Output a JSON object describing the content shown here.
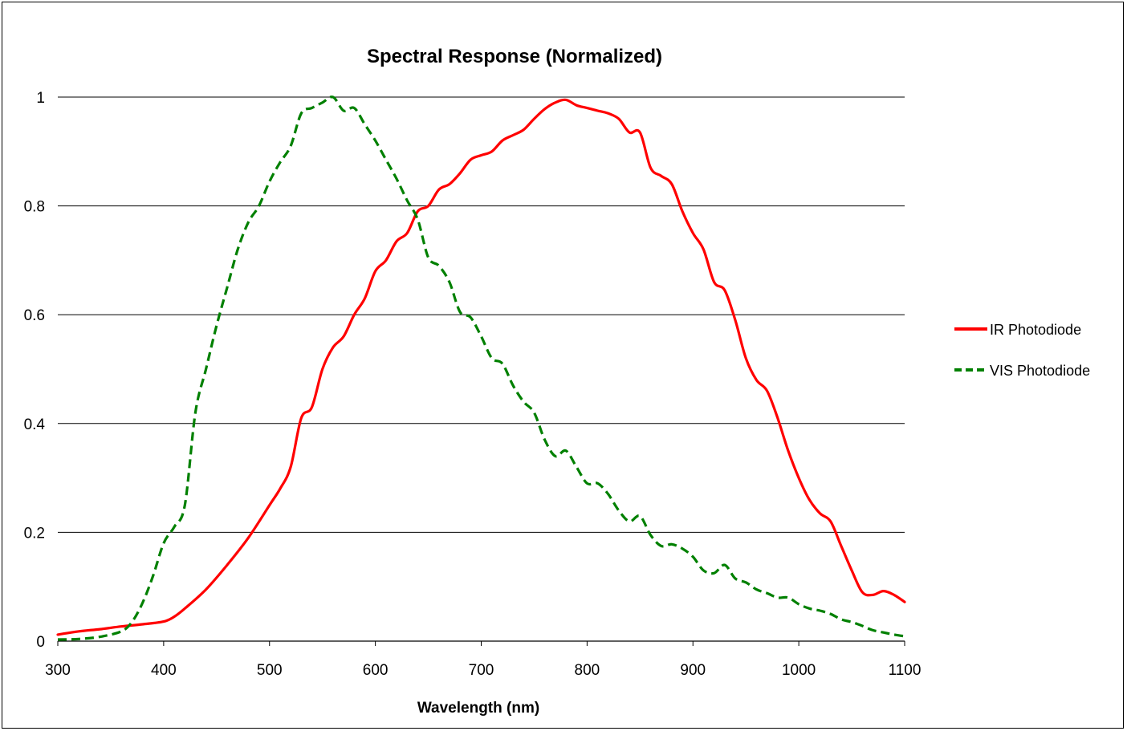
{
  "chart_data": {
    "type": "line",
    "title": "Spectral Response (Normalized)",
    "xlabel": "Wavelength (nm)",
    "ylabel": "",
    "xlim": [
      300,
      1100
    ],
    "ylim": [
      0,
      1
    ],
    "x_ticks": [
      "300",
      "400",
      "500",
      "600",
      "700",
      "800",
      "900",
      "1000",
      "1100"
    ],
    "y_ticks": [
      "0",
      "0.2",
      "0.4",
      "0.6",
      "0.8",
      "1"
    ],
    "grid": "horizontal",
    "legend_position": "right",
    "series": [
      {
        "name": "IR Photodiode",
        "color": "#ff0000",
        "style": "solid",
        "x": [
          300,
          320,
          340,
          360,
          380,
          400,
          410,
          420,
          440,
          460,
          480,
          500,
          510,
          520,
          530,
          540,
          550,
          560,
          570,
          580,
          590,
          600,
          610,
          620,
          630,
          640,
          650,
          660,
          670,
          680,
          690,
          700,
          710,
          720,
          730,
          740,
          750,
          760,
          770,
          780,
          790,
          800,
          810,
          820,
          830,
          840,
          850,
          860,
          870,
          880,
          890,
          900,
          910,
          920,
          930,
          940,
          950,
          960,
          970,
          980,
          990,
          1000,
          1010,
          1020,
          1030,
          1040,
          1050,
          1060,
          1070,
          1080,
          1090,
          1100
        ],
        "y": [
          0.012,
          0.018,
          0.022,
          0.027,
          0.031,
          0.036,
          0.045,
          0.06,
          0.095,
          0.14,
          0.19,
          0.25,
          0.28,
          0.32,
          0.41,
          0.43,
          0.5,
          0.54,
          0.56,
          0.6,
          0.63,
          0.68,
          0.7,
          0.735,
          0.75,
          0.79,
          0.8,
          0.83,
          0.84,
          0.86,
          0.885,
          0.893,
          0.9,
          0.92,
          0.93,
          0.94,
          0.96,
          0.978,
          0.99,
          0.995,
          0.985,
          0.98,
          0.975,
          0.97,
          0.96,
          0.935,
          0.935,
          0.87,
          0.855,
          0.84,
          0.79,
          0.75,
          0.72,
          0.66,
          0.645,
          0.59,
          0.52,
          0.48,
          0.46,
          0.41,
          0.35,
          0.3,
          0.26,
          0.235,
          0.22,
          0.175,
          0.13,
          0.09,
          0.085,
          0.092,
          0.085,
          0.072
        ]
      },
      {
        "name": "VIS Photodiode",
        "color": "#008000",
        "style": "dashed",
        "x": [
          300,
          320,
          340,
          360,
          370,
          380,
          390,
          400,
          410,
          420,
          430,
          440,
          450,
          460,
          470,
          480,
          490,
          500,
          510,
          520,
          530,
          540,
          550,
          560,
          570,
          580,
          590,
          600,
          610,
          620,
          630,
          640,
          650,
          660,
          670,
          680,
          690,
          700,
          710,
          720,
          730,
          740,
          750,
          760,
          770,
          780,
          790,
          800,
          810,
          820,
          830,
          840,
          850,
          860,
          870,
          880,
          890,
          900,
          910,
          920,
          930,
          940,
          950,
          960,
          970,
          980,
          990,
          1000,
          1010,
          1020,
          1030,
          1040,
          1050,
          1060,
          1070,
          1080,
          1090,
          1100
        ],
        "y": [
          0.003,
          0.004,
          0.008,
          0.018,
          0.035,
          0.07,
          0.12,
          0.18,
          0.21,
          0.25,
          0.42,
          0.5,
          0.58,
          0.65,
          0.72,
          0.77,
          0.8,
          0.845,
          0.88,
          0.91,
          0.97,
          0.98,
          0.99,
          1.0,
          0.975,
          0.98,
          0.95,
          0.92,
          0.885,
          0.85,
          0.81,
          0.775,
          0.705,
          0.69,
          0.66,
          0.605,
          0.595,
          0.56,
          0.52,
          0.51,
          0.47,
          0.44,
          0.42,
          0.37,
          0.34,
          0.35,
          0.32,
          0.29,
          0.29,
          0.27,
          0.24,
          0.22,
          0.23,
          0.195,
          0.175,
          0.178,
          0.17,
          0.155,
          0.13,
          0.125,
          0.14,
          0.115,
          0.108,
          0.095,
          0.088,
          0.08,
          0.08,
          0.068,
          0.06,
          0.056,
          0.05,
          0.04,
          0.035,
          0.028,
          0.02,
          0.016,
          0.012,
          0.009
        ]
      }
    ]
  }
}
